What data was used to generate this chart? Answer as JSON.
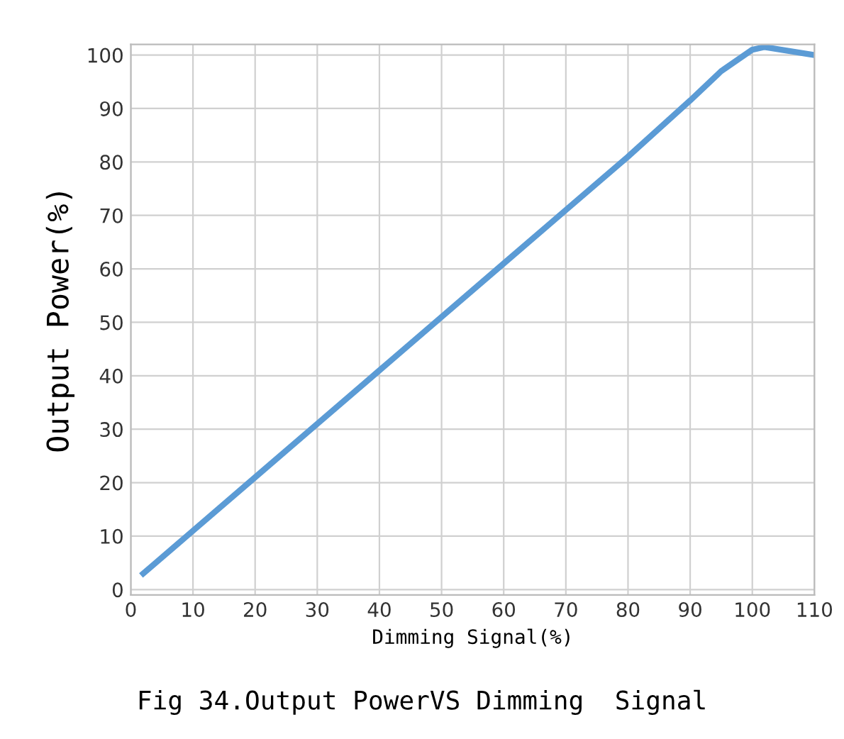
{
  "chart_data": {
    "type": "line",
    "xlabel": "Dimming Signal(%)",
    "ylabel": "Output Power(%)",
    "annotations": [
      "Fig 34.Output PowerVS Dimming  Signal"
    ],
    "x": [
      2,
      4,
      10,
      20,
      30,
      40,
      50,
      60,
      70,
      80,
      90,
      95,
      100,
      102,
      110
    ],
    "series": [
      {
        "color": "#5b9bd5",
        "values": [
          3,
          5,
          11,
          21,
          31,
          41,
          51,
          61,
          71,
          81,
          91.5,
          97,
          101,
          101.5,
          100
        ]
      }
    ],
    "xlim": [
      0,
      110
    ],
    "xticks": [
      0,
      10,
      20,
      30,
      40,
      50,
      60,
      70,
      80,
      90,
      100,
      110
    ],
    "ylim": [
      -1,
      102
    ],
    "yticks": [
      0,
      10,
      20,
      30,
      40,
      50,
      60,
      70,
      80,
      90,
      100
    ],
    "grid": true,
    "legend": false,
    "marker": "none",
    "line_style": "solid"
  }
}
